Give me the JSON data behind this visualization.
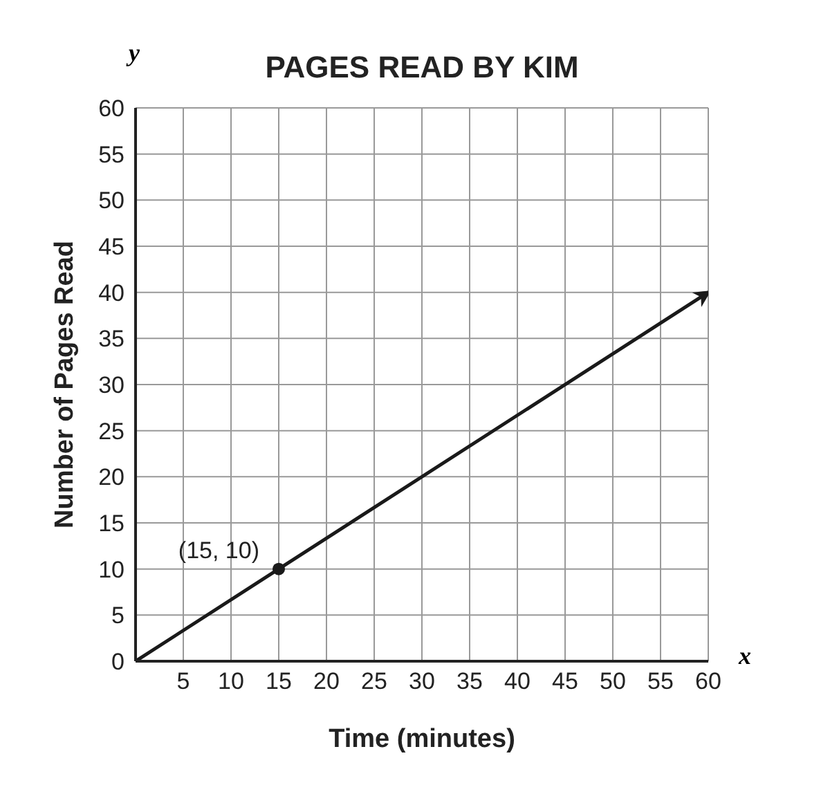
{
  "chart_data": {
    "type": "line",
    "title": "PAGES READ BY KIM",
    "xlabel": "Time (minutes)",
    "ylabel": "Number of Pages Read",
    "series": [
      {
        "x": [
          0,
          15,
          60
        ],
        "values": [
          0,
          10,
          40
        ],
        "color": "#1a1a1a",
        "marker": "none"
      },
      {
        "type": "scatter",
        "x": [
          15
        ],
        "values": [
          10
        ],
        "color": "#1a1a1a",
        "marker": "circle"
      }
    ],
    "xlim": [
      0,
      60
    ],
    "ylim": [
      0,
      60
    ],
    "xticks": [
      {
        "value": 0,
        "label": null
      },
      5,
      10,
      15,
      20,
      25,
      30,
      35,
      40,
      45,
      50,
      55,
      60
    ],
    "yticks": [
      0,
      5,
      10,
      15,
      20,
      25,
      30,
      35,
      40,
      45,
      50,
      55,
      60
    ],
    "grid": true,
    "annotations": [
      "y",
      "x",
      {
        "text": "(15, 10)",
        "x": 15,
        "y": 10
      }
    ]
  }
}
